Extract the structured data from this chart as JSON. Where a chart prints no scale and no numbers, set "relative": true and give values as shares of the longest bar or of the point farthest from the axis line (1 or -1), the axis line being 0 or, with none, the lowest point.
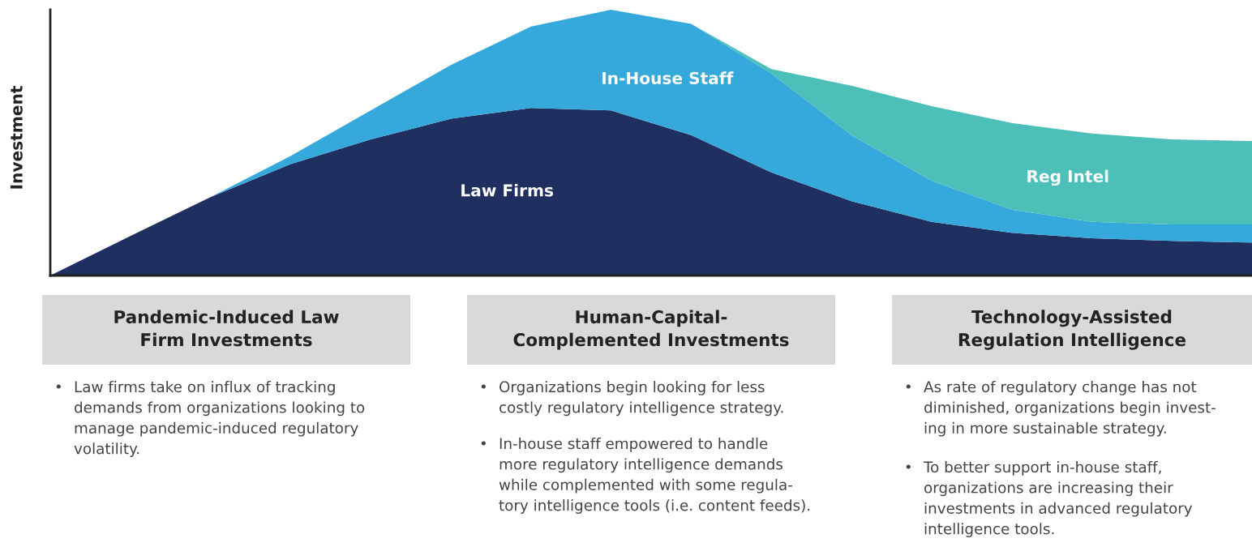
{
  "chart_data": {
    "type": "area",
    "stacked": true,
    "relative": true,
    "ylabel": "Investment",
    "categories": [
      null,
      null,
      null,
      null,
      null,
      null,
      null,
      null,
      null,
      null,
      null,
      null,
      null,
      null,
      null,
      null
    ],
    "series": [
      {
        "name": "Law Firms",
        "color": "#1f2f5f",
        "values": [
          0,
          0.149,
          0.295,
          0.419,
          0.512,
          0.59,
          0.63,
          0.621,
          0.528,
          0.388,
          0.28,
          0.202,
          0.161,
          0.14,
          0.13,
          0.124
        ]
      },
      {
        "name": "In-House Staff",
        "color": "#35a8dc",
        "values": [
          0,
          0,
          0,
          0.031,
          0.109,
          0.202,
          0.307,
          0.379,
          0.419,
          0.373,
          0.248,
          0.155,
          0.087,
          0.062,
          0.062,
          0.068
        ]
      },
      {
        "name": "Reg Intel",
        "color": "#4bbfb8",
        "values": [
          null,
          null,
          null,
          null,
          null,
          null,
          null,
          null,
          0,
          0.016,
          0.186,
          0.28,
          0.326,
          0.332,
          0.32,
          0.314
        ]
      }
    ],
    "annotations": [
      "Pandemic-Induced Law\nFirm Investments",
      "• Law firms take on influx of tracking\ndemands from organizations looking to\nmanage pandemic-induced regulatory\nvolatility.",
      "Human-Capital-\nComplemented Investments",
      "• Organizations begin looking for less\ncostly regulatory intelligence strategy.",
      "• In-house staff empowered to handle\nmore regulatory intelligence demands\nwhile complemented with some regula-\ntory intelligence tools (i.e. content feeds).",
      "Technology-Assisted\nRegulation Intelligence",
      "• As rate of regulatory change has not\ndiminished, organizations begin invest-\ning in more sustainable strategy.",
      "• To better support in-house staff,\norganizations are increasing their\ninvestments in advanced regulatory\nintelligence tools."
    ]
  }
}
